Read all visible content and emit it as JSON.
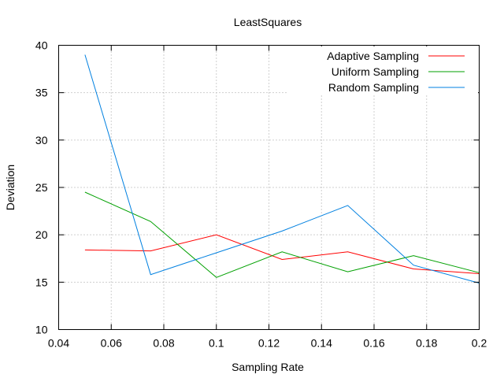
{
  "chart_data": {
    "type": "line",
    "title": "LeastSquares",
    "xlabel": "Sampling Rate",
    "ylabel": "Deviation",
    "xlim": [
      0.04,
      0.2
    ],
    "ylim": [
      10,
      40
    ],
    "x_ticks": [
      0.04,
      0.06,
      0.08,
      0.1,
      0.12,
      0.14,
      0.16,
      0.18,
      0.2
    ],
    "x_tick_labels": [
      "0.04",
      "0.06",
      "0.08",
      "0.1",
      "0.12",
      "0.14",
      "0.16",
      "0.18",
      "0.2"
    ],
    "y_ticks": [
      10,
      15,
      20,
      25,
      30,
      35,
      40
    ],
    "y_tick_labels": [
      "10",
      "15",
      "20",
      "25",
      "30",
      "35",
      "40"
    ],
    "grid": true,
    "legend_position": "top-right",
    "series": [
      {
        "name": "Adaptive Sampling",
        "color": "#ff0000",
        "x": [
          0.05,
          0.075,
          0.1,
          0.125,
          0.15,
          0.175,
          0.2
        ],
        "values": [
          18.4,
          18.3,
          20.0,
          17.4,
          18.2,
          16.4,
          15.9
        ]
      },
      {
        "name": "Uniform Sampling",
        "color": "#00a000",
        "x": [
          0.05,
          0.075,
          0.1,
          0.125,
          0.15,
          0.175,
          0.2
        ],
        "values": [
          24.5,
          21.4,
          15.5,
          18.2,
          16.1,
          17.8,
          16.0
        ]
      },
      {
        "name": "Random Sampling",
        "color": "#0080e0",
        "x": [
          0.05,
          0.075,
          0.1,
          0.125,
          0.15,
          0.175,
          0.2
        ],
        "values": [
          39.0,
          15.8,
          18.1,
          20.4,
          23.1,
          16.8,
          14.9
        ]
      }
    ]
  }
}
